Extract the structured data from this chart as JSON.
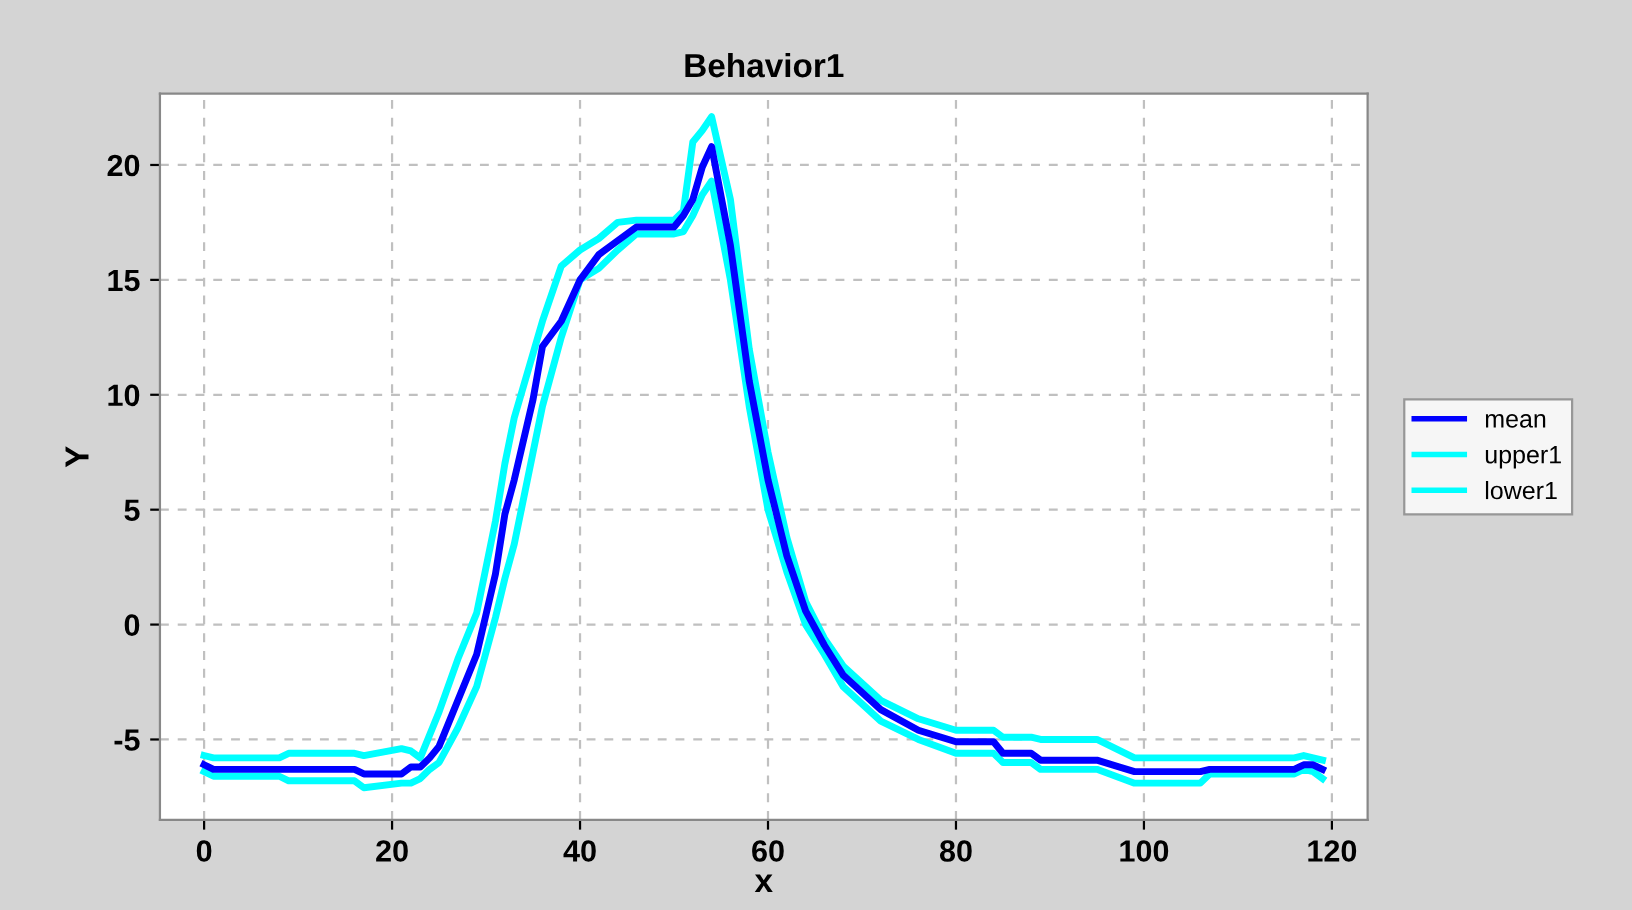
{
  "chart_data": {
    "type": "line",
    "title": "Behavior1",
    "xlabel": "x",
    "ylabel": "Y",
    "x": [
      0,
      1,
      8,
      9,
      16,
      17,
      21,
      22,
      23,
      24,
      25,
      27,
      29,
      31,
      32,
      33,
      35,
      36,
      38,
      40,
      42,
      44,
      46,
      50,
      51,
      52,
      53,
      54,
      56,
      58,
      60,
      62,
      64,
      66,
      68,
      72,
      76,
      80,
      84,
      85,
      88,
      89,
      95,
      99,
      106,
      107,
      116,
      117,
      118,
      119
    ],
    "series": [
      {
        "name": "mean",
        "color": "#0000ff",
        "values": [
          -6.1,
          -6.3,
          -6.3,
          -6.3,
          -6.3,
          -6.5,
          -6.5,
          -6.2,
          -6.2,
          -5.8,
          -5.3,
          -3.3,
          -1.3,
          2.2,
          4.8,
          6.3,
          9.8,
          12.1,
          13.2,
          15.0,
          16.1,
          16.7,
          17.3,
          17.3,
          17.8,
          18.5,
          19.9,
          20.8,
          16.5,
          10.6,
          6.3,
          3.0,
          0.6,
          -0.9,
          -2.2,
          -3.7,
          -4.6,
          -5.1,
          -5.1,
          -5.6,
          -5.6,
          -5.9,
          -5.9,
          -6.4,
          -6.4,
          -6.3,
          -6.3,
          -6.1,
          -6.1,
          -6.3
        ]
      },
      {
        "name": "upper1",
        "color": "#00ffff",
        "values": [
          -5.7,
          -5.8,
          -5.8,
          -5.6,
          -5.6,
          -5.7,
          -5.4,
          -5.5,
          -5.8,
          -4.8,
          -3.8,
          -1.5,
          0.5,
          4.5,
          7.0,
          9.0,
          11.8,
          13.2,
          15.6,
          16.3,
          16.8,
          17.5,
          17.6,
          17.6,
          18.0,
          21.0,
          21.5,
          22.1,
          18.5,
          12.0,
          7.5,
          3.8,
          1.0,
          -0.6,
          -1.8,
          -3.3,
          -4.1,
          -4.6,
          -4.6,
          -4.9,
          -4.9,
          -5.0,
          -5.0,
          -5.8,
          -5.8,
          -5.8,
          -5.8,
          -5.7,
          -5.8,
          -5.9
        ]
      },
      {
        "name": "lower1",
        "color": "#00ffff",
        "values": [
          -6.4,
          -6.6,
          -6.6,
          -6.8,
          -6.8,
          -7.1,
          -6.9,
          -6.9,
          -6.7,
          -6.3,
          -6.0,
          -4.5,
          -2.7,
          0.3,
          2.0,
          3.5,
          7.5,
          9.5,
          12.5,
          15.0,
          15.5,
          16.3,
          17.0,
          17.0,
          17.1,
          17.8,
          18.7,
          19.3,
          15.0,
          9.5,
          5.0,
          2.3,
          0.0,
          -1.3,
          -2.7,
          -4.2,
          -5.0,
          -5.6,
          -5.6,
          -6.0,
          -6.0,
          -6.3,
          -6.3,
          -6.9,
          -6.9,
          -6.5,
          -6.5,
          -6.3,
          -6.4,
          -6.7
        ]
      }
    ],
    "xlim": [
      -4.7,
      123.8
    ],
    "ylim": [
      -8.5,
      23.1
    ],
    "xticks": [
      0,
      20,
      40,
      60,
      80,
      100,
      120
    ],
    "yticks": [
      -5,
      0,
      5,
      10,
      15,
      20
    ],
    "grid": true,
    "legend": "right",
    "line_style": "solid",
    "marker": "none"
  }
}
